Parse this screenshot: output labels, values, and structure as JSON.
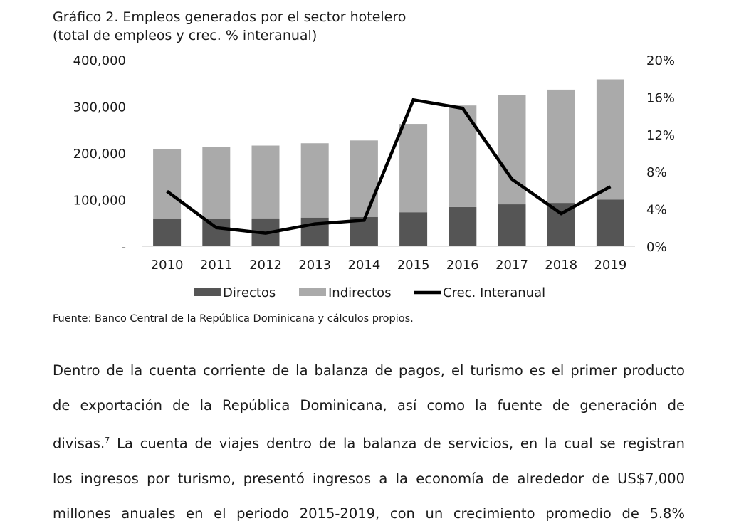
{
  "chart_data": {
    "type": "bar",
    "title": "Gráfico 2. Empleos generados por el sector hotelero",
    "subtitle": "(total de empleos y crec. % interanual)",
    "categories": [
      "2010",
      "2011",
      "2012",
      "2013",
      "2014",
      "2015",
      "2016",
      "2017",
      "2018",
      "2019"
    ],
    "series": [
      {
        "name": "Directos",
        "type": "stacked-bar",
        "color": "#555555",
        "values": [
          58500,
          59500,
          60000,
          61500,
          63000,
          73000,
          84000,
          90000,
          93000,
          100000
        ]
      },
      {
        "name": "Indirectos",
        "type": "stacked-bar",
        "color": "#aaaaaa",
        "values": [
          150500,
          153500,
          156000,
          159500,
          164000,
          189500,
          218000,
          235000,
          243000,
          258000
        ]
      },
      {
        "name": "Crec. Interanual",
        "type": "line",
        "axis": "right",
        "color": "#000000",
        "values": [
          5.9,
          2.0,
          1.4,
          2.4,
          2.8,
          15.7,
          14.8,
          7.2,
          3.5,
          6.4
        ]
      }
    ],
    "ylim": [
      0,
      400000
    ],
    "y_ticks": [
      "-",
      "100,000",
      "200,000",
      "300,000",
      "400,000"
    ],
    "y2lim": [
      0,
      20
    ],
    "y2_ticks": [
      "0%",
      "4%",
      "8%",
      "12%",
      "16%",
      "20%"
    ],
    "legend_position": "bottom",
    "grid": false
  },
  "source": "Fuente: Banco Central de la República Dominicana y cálculos propios.",
  "paragraph": {
    "lines": [
      "Dentro de la cuenta corriente de la balanza de pagos, el turismo es el primer producto",
      "de exportación de la República Dominicana, así como la fuente de generación de",
      "divisas.",
      "La cuenta de viajes dentro de la balanza de servicios, en la cual se registran",
      "los ingresos por turismo, presentó ingresos a la economía de alrededor de US$7,000",
      "millones anuales en el periodo 2015-2019, con un crecimiento promedio de 5.8%"
    ],
    "footnote_ref": "7"
  }
}
